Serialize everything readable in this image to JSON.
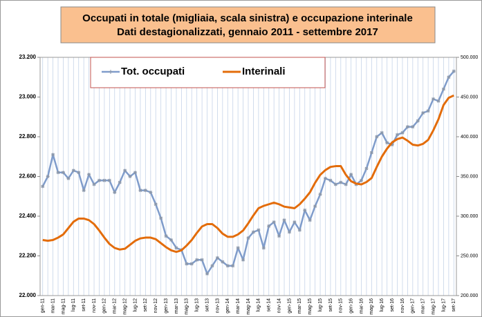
{
  "chart_data": {
    "type": "line",
    "title": "Occupati in  totale (migliaia, scala sinistra)  e occupazione interinale",
    "subtitle": "Dati destagionalizzati, gennaio 2011 - settembre 2017",
    "categories": [
      "gen-11",
      null,
      "mar-11",
      null,
      "mag-11",
      null,
      "lug-11",
      null,
      "set-11",
      null,
      "nov-11",
      null,
      "gen-12",
      null,
      "mar-12",
      null,
      "mag-12",
      null,
      "lug-12",
      null,
      "set-12",
      null,
      "nov-12",
      null,
      "gen-13",
      null,
      "mar-13",
      null,
      "mag-13",
      null,
      "lug-13",
      null,
      "set-13",
      null,
      "nov-13",
      null,
      "gen-14",
      null,
      "mar-14",
      null,
      "mag-14",
      null,
      "lug-14",
      null,
      "set-14",
      null,
      "nov-14",
      null,
      "gen-15",
      null,
      "mar-15",
      null,
      "mag-15",
      null,
      "lug-15",
      null,
      "set-15",
      null,
      "nov-15",
      null,
      "gen-16",
      null,
      "mar-16",
      null,
      "mag-16",
      null,
      "lug-16",
      null,
      "set-16",
      null,
      "nov-16",
      null,
      "gen-17",
      null,
      "mar-17",
      null,
      "mag-17",
      null,
      "lug-17",
      null,
      "set-17"
    ],
    "series": [
      {
        "name": "Tot. occupati",
        "color": "#7f9ccb",
        "axis": "y",
        "values": [
          22550,
          22600,
          22710,
          22620,
          22620,
          22590,
          22630,
          22620,
          22530,
          22610,
          22560,
          22580,
          22580,
          22580,
          22520,
          22570,
          22630,
          22600,
          22620,
          22530,
          22530,
          22520,
          22460,
          22390,
          22300,
          22280,
          22240,
          22230,
          22160,
          22160,
          22180,
          22180,
          22110,
          22150,
          22190,
          22170,
          22150,
          22150,
          22240,
          22180,
          22290,
          22320,
          22330,
          22240,
          22350,
          22370,
          22300,
          22380,
          22320,
          22370,
          22330,
          22430,
          22380,
          22450,
          22510,
          22590,
          22580,
          22560,
          22570,
          22560,
          22610,
          22560,
          22580,
          22640,
          22720,
          22800,
          22820,
          22770,
          22760,
          22810,
          22820,
          22850,
          22850,
          22880,
          22920,
          22930,
          22990,
          22980,
          23040,
          23100,
          23130
        ]
      },
      {
        "name": "Interinali",
        "color": "#e36c0a",
        "axis": "y2",
        "values": [
          270000,
          269000,
          270000,
          273000,
          277000,
          285000,
          293000,
          297000,
          297000,
          295000,
          290000,
          282000,
          273000,
          265000,
          260000,
          258000,
          259000,
          264000,
          269000,
          272000,
          273000,
          273000,
          271000,
          266000,
          261000,
          257000,
          255000,
          257000,
          263000,
          270000,
          279000,
          287000,
          290000,
          290000,
          285000,
          278000,
          274000,
          274000,
          277000,
          282000,
          291000,
          301000,
          310000,
          313000,
          315000,
          317000,
          315000,
          312000,
          311000,
          310000,
          315000,
          322000,
          330000,
          342000,
          352000,
          358000,
          362000,
          363000,
          363000,
          352000,
          344000,
          341000,
          340000,
          343000,
          348000,
          362000,
          375000,
          385000,
          393000,
          397000,
          399000,
          395000,
          390000,
          389000,
          391000,
          396000,
          408000,
          422000,
          440000,
          449000,
          452000
        ]
      }
    ],
    "ylim": [
      22000,
      23200
    ],
    "yticks": [
      {
        "value": 22000,
        "label": "22.000"
      },
      {
        "value": 22200,
        "label": "22.200"
      },
      {
        "value": 22400,
        "label": "22.400"
      },
      {
        "value": 22600,
        "label": "22.600"
      },
      {
        "value": 22800,
        "label": "22.800"
      },
      {
        "value": 23000,
        "label": "23.000"
      },
      {
        "value": 23200,
        "label": "23.200"
      }
    ],
    "y2lim": [
      200000,
      500000
    ],
    "y2ticks": [
      {
        "value": 200000,
        "label": "200.000"
      },
      {
        "value": 250000,
        "label": "250.000"
      },
      {
        "value": 300000,
        "label": "300.000"
      },
      {
        "value": 350000,
        "label": "350.000"
      },
      {
        "value": 400000,
        "label": "400.000"
      },
      {
        "value": 450000,
        "label": "450.000"
      },
      {
        "value": 500000,
        "label": "500.000"
      }
    ],
    "grid": true
  }
}
